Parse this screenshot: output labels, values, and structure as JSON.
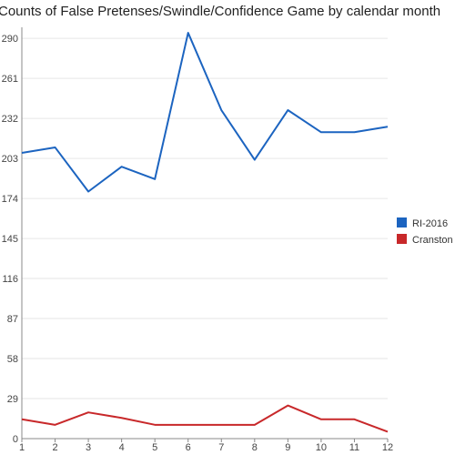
{
  "chart_data": {
    "type": "line",
    "title": "Counts of False Pretenses/Swindle/Confidence Game by calendar month",
    "xlabel": "",
    "ylabel": "",
    "x": [
      1,
      2,
      3,
      4,
      5,
      6,
      7,
      8,
      9,
      10,
      11,
      12
    ],
    "x_ticks": [
      "1",
      "2",
      "3",
      "4",
      "5",
      "6",
      "7",
      "8",
      "9",
      "10",
      "11",
      "12"
    ],
    "y_ticks": [
      "0",
      "29",
      "58",
      "87",
      "116",
      "145",
      "174",
      "203",
      "232",
      "261",
      "290"
    ],
    "ylim": [
      0,
      298
    ],
    "grid": true,
    "legend_position": "right",
    "series": [
      {
        "name": "RI-2016",
        "color": "#1c64c0",
        "values": [
          207,
          211,
          179,
          197,
          188,
          294,
          238,
          202,
          238,
          222,
          222,
          226
        ]
      },
      {
        "name": "Cranston",
        "color": "#c8282a",
        "values": [
          14,
          10,
          19,
          15,
          10,
          10,
          10,
          10,
          24,
          14,
          14,
          5
        ]
      }
    ]
  }
}
